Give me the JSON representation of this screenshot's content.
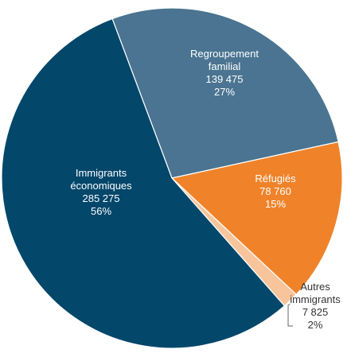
{
  "chart_data": {
    "type": "pie",
    "title": "",
    "slices": [
      {
        "name": [
          "Regroupement",
          "familial"
        ],
        "value_text": "139 475",
        "value": 139475,
        "percent": "27%",
        "color": "#4a7491",
        "label_color": "#ffffff"
      },
      {
        "name": [
          "Réfugiés"
        ],
        "value_text": "78 760",
        "value": 78760,
        "percent": "15%",
        "color": "#f0832a",
        "label_color": "#ffffff"
      },
      {
        "name": [
          "Autres",
          "immigrants"
        ],
        "value_text": "7 825",
        "value": 7825,
        "percent": "2%",
        "color": "#f7c49b",
        "label_color": "#333333"
      },
      {
        "name": [
          "Immigrants",
          "économiques"
        ],
        "value_text": "285 275",
        "value": 285275,
        "percent": "56%",
        "color": "#03476b",
        "label_color": "#ffffff"
      }
    ]
  }
}
